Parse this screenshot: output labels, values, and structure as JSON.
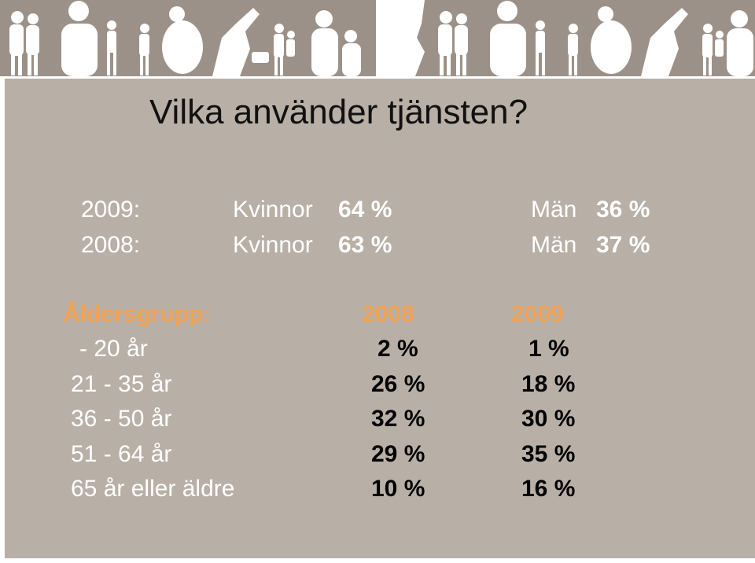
{
  "banner": {
    "icons": [
      "couple-silhouette-icon",
      "heart-person-icon",
      "walking-cane-icon",
      "pregnant-woman-icon",
      "hand-icon",
      "mother-child-icon",
      "family-icon",
      "face-profile-icon"
    ]
  },
  "colors": {
    "background": "#b8afa6",
    "banner": "#9c9188",
    "accent": "#f1a355",
    "text_light": "#ffffff",
    "title": "#111111"
  },
  "title": "Vilka använder tjänsten?",
  "gender": {
    "rows": [
      {
        "year": "2009:",
        "women_label": "Kvinnor",
        "women_value": "64 %",
        "men_label": "Män",
        "men_value": "36 %"
      },
      {
        "year": "2008:",
        "women_label": "Kvinnor",
        "women_value": "63 %",
        "men_label": "Män",
        "men_value": "37 %"
      }
    ]
  },
  "age": {
    "header": {
      "group": "Åldersgrupp:",
      "col1": "2008",
      "col2": "2009"
    },
    "rows": [
      {
        "group": "- 20 år",
        "v2008": "2 %",
        "v2009": "1 %"
      },
      {
        "group": "21 - 35 år",
        "v2008": "26 %",
        "v2009": "18 %"
      },
      {
        "group": "36 - 50 år",
        "v2008": "32 %",
        "v2009": "30 %"
      },
      {
        "group": "51 - 64 år",
        "v2008": "29 %",
        "v2009": "35 %"
      },
      {
        "group": "65 år eller äldre",
        "v2008": "10 %",
        "v2009": "16 %"
      }
    ]
  }
}
